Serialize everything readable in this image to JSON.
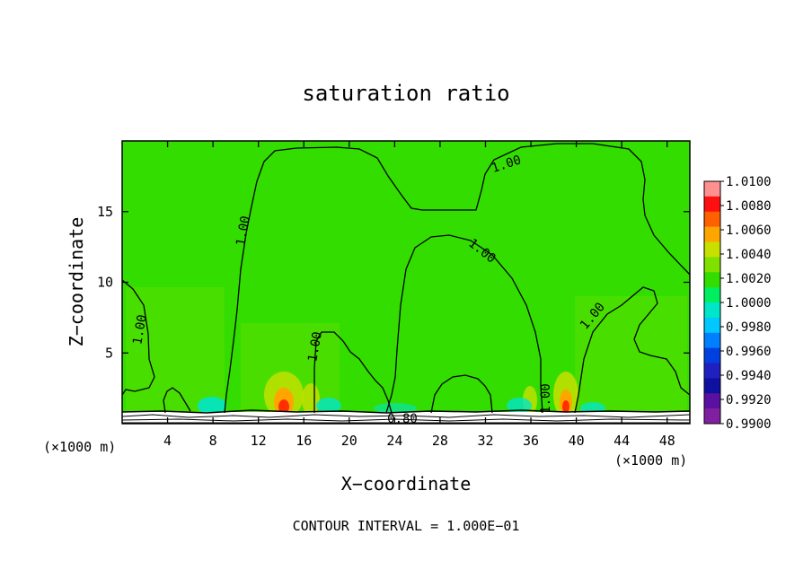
{
  "chart_data": {
    "type": "heatmap",
    "title": "saturation ratio",
    "xlabel": "X−coordinate",
    "ylabel": "Z−coordinate",
    "x_unit_left": "(×1000 m)",
    "x_unit_right": "(×1000 m)",
    "xlim": [
      0,
      50
    ],
    "ylim": [
      0,
      20
    ],
    "x_ticks": [
      4,
      8,
      12,
      16,
      20,
      24,
      28,
      32,
      36,
      40,
      44,
      48
    ],
    "y_ticks": [
      5,
      10,
      15
    ],
    "background_value": 1.0,
    "contour_interval_text": "CONTOUR INTERVAL = 1.000E−01",
    "contour_labels": [
      "1.00",
      "1.00",
      "1.00",
      "1.00",
      "1.00",
      "1.00",
      "1.00",
      "0.80"
    ],
    "colorbar": {
      "labels": [
        "1.0100",
        "1.0080",
        "1.0060",
        "1.0040",
        "1.0020",
        "1.0000",
        "0.9980",
        "0.9960",
        "0.9940",
        "0.9920",
        "0.9900"
      ],
      "colors": [
        "#ff9090",
        "#ff1010",
        "#ff6000",
        "#ffa500",
        "#c8e000",
        "#80e000",
        "#33dd00",
        "#00ee60",
        "#00e6c8",
        "#00c8ff",
        "#0080ff",
        "#0040e0",
        "#2020c0",
        "#1010a0",
        "#5a10a0",
        "#8020a0"
      ]
    },
    "field_colors": {
      "main": "#33dd00",
      "light": "#5ae000",
      "yellow": "#c8e000",
      "orange": "#ffa500",
      "red": "#ff3000",
      "cyan": "#00e6c8",
      "blue": "#00c8ff"
    }
  }
}
